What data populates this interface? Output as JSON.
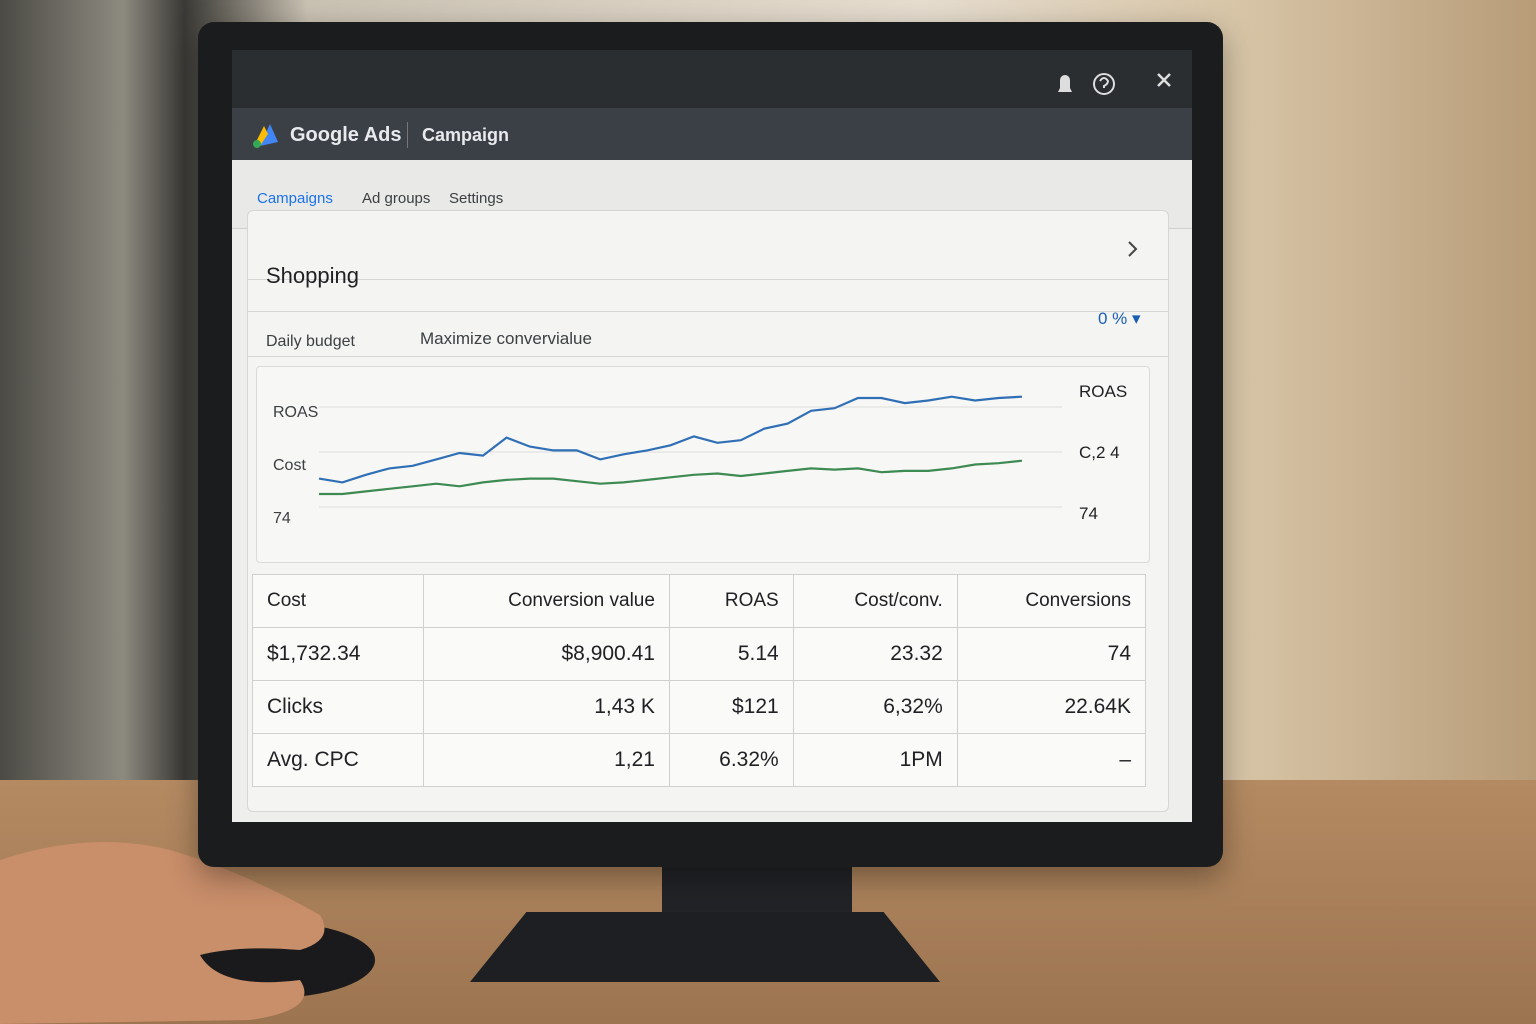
{
  "header": {
    "logo": "Google Ads",
    "title": "Campaign"
  },
  "tabs": [
    "Campaigns",
    "Ad groups",
    "Settings"
  ],
  "card": {
    "title": "Shopping",
    "budget_label": "Daily budget",
    "strategy": "Maximize convervialue",
    "percent": "0 %"
  },
  "chart": {
    "left_labels": [
      "ROAS",
      "Cost",
      "74"
    ],
    "right_labels": [
      "ROAS",
      "C,2 4",
      "74"
    ],
    "ylim": [
      0,
      100
    ],
    "series": [
      {
        "color": "#2f6fb5",
        "values": [
          30,
          27,
          33,
          38,
          40,
          45,
          50,
          48,
          62,
          55,
          52,
          52,
          45,
          49,
          52,
          56,
          63,
          58,
          60,
          69,
          73,
          83,
          85,
          93,
          93,
          89,
          91,
          94,
          91,
          93,
          94
        ]
      },
      {
        "color": "#3d8a52",
        "values": [
          18,
          18,
          20,
          22,
          24,
          26,
          24,
          27,
          29,
          30,
          30,
          28,
          26,
          27,
          29,
          31,
          33,
          34,
          32,
          34,
          36,
          38,
          37,
          38,
          35,
          36,
          36,
          38,
          41,
          42,
          44
        ]
      }
    ]
  },
  "table": {
    "rows": [
      [
        "Cost",
        "Conversion value",
        "ROAS",
        "Cost/conv.",
        "Conversions"
      ],
      [
        "$1,732.34",
        "$8,900.41",
        "5.14",
        "23.32",
        "74"
      ],
      [
        "Clicks",
        "1,43 K",
        "$121",
        "6,32%",
        "22.64K"
      ],
      [
        "Avg. CPC",
        "1,21",
        "6.32%",
        "1PM",
        "–"
      ]
    ]
  }
}
